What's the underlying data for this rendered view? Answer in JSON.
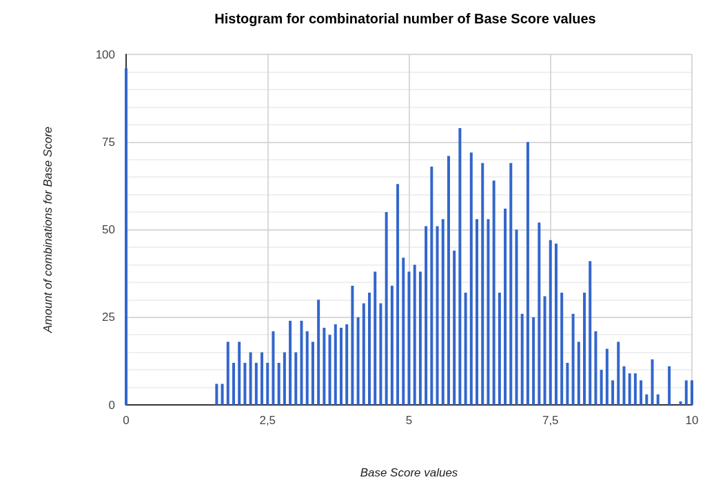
{
  "chart_data": {
    "type": "bar",
    "title": "Histogram for combinatorial number of Base Score values",
    "xlabel": "Base Score values",
    "ylabel": "Amount of combinations for Base Score",
    "x": [
      0,
      1.6,
      1.7,
      1.8,
      1.9,
      2.0,
      2.1,
      2.2,
      2.3,
      2.4,
      2.5,
      2.6,
      2.7,
      2.8,
      2.9,
      3.0,
      3.1,
      3.2,
      3.3,
      3.4,
      3.5,
      3.6,
      3.7,
      3.8,
      3.9,
      4.0,
      4.1,
      4.2,
      4.3,
      4.4,
      4.5,
      4.6,
      4.7,
      4.8,
      4.9,
      5.0,
      5.1,
      5.2,
      5.3,
      5.4,
      5.5,
      5.6,
      5.7,
      5.8,
      5.9,
      6.0,
      6.1,
      6.2,
      6.3,
      6.4,
      6.5,
      6.6,
      6.7,
      6.8,
      6.9,
      7.0,
      7.1,
      7.2,
      7.3,
      7.4,
      7.5,
      7.6,
      7.7,
      7.8,
      7.9,
      8.0,
      8.1,
      8.2,
      8.3,
      8.4,
      8.5,
      8.6,
      8.7,
      8.8,
      8.9,
      9.0,
      9.1,
      9.2,
      9.3,
      9.4,
      9.6,
      9.8,
      9.9,
      10.0
    ],
    "values": [
      96,
      6,
      6,
      18,
      12,
      18,
      12,
      15,
      12,
      15,
      12,
      21,
      12,
      15,
      24,
      15,
      24,
      21,
      18,
      30,
      22,
      20,
      23,
      22,
      23,
      34,
      25,
      29,
      32,
      38,
      29,
      55,
      34,
      63,
      42,
      38,
      40,
      38,
      51,
      68,
      51,
      53,
      71,
      44,
      79,
      32,
      72,
      53,
      69,
      53,
      64,
      32,
      56,
      69,
      50,
      26,
      75,
      25,
      52,
      31,
      47,
      46,
      32,
      12,
      26,
      18,
      32,
      41,
      21,
      10,
      16,
      7,
      18,
      11,
      9,
      9,
      7,
      3,
      13,
      3,
      11,
      1,
      7,
      7
    ],
    "color": "#3366cc",
    "xlim": [
      0,
      10
    ],
    "xticks": [
      0,
      {
        "value": 2.5,
        "label": "2,5"
      },
      5,
      {
        "value": 7.5,
        "label": "7,5"
      },
      10
    ],
    "ylim": [
      0,
      100
    ],
    "yticks": [
      0,
      25,
      50,
      75,
      100
    ],
    "grid": true
  }
}
